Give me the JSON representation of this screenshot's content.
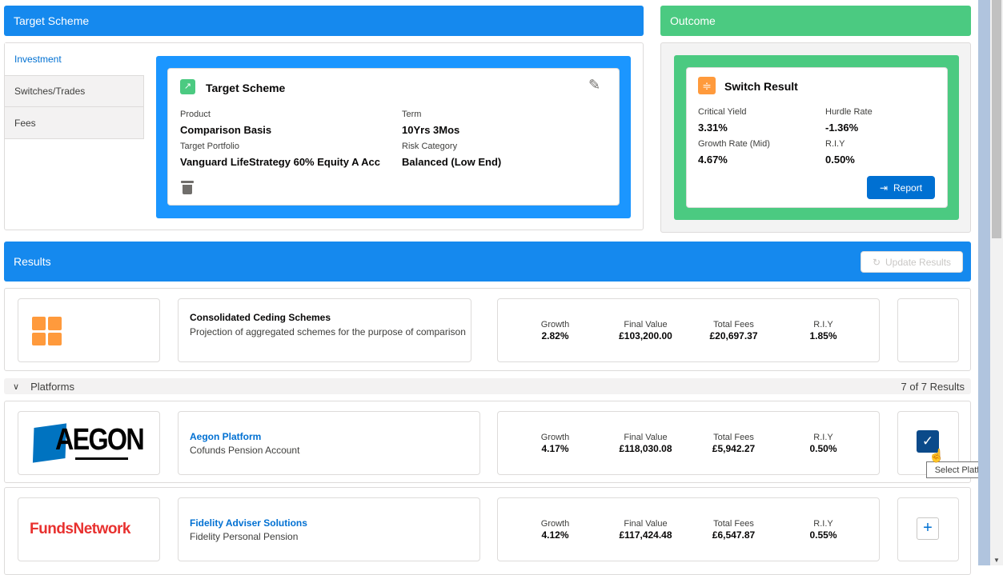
{
  "target_header": "Target Scheme",
  "outcome_header": "Outcome",
  "tabs": [
    "Investment",
    "Switches/Trades",
    "Fees"
  ],
  "target_card": {
    "title": "Target Scheme",
    "fields": [
      {
        "label": "Product",
        "value": "Comparison Basis"
      },
      {
        "label": "Term",
        "value": "10Yrs 3Mos"
      },
      {
        "label": "Target Portfolio",
        "value": "Vanguard LifeStrategy 60% Equity A Acc"
      },
      {
        "label": "Risk Category",
        "value": "Balanced (Low End)"
      }
    ]
  },
  "switch_card": {
    "title": "Switch Result",
    "fields": [
      {
        "label": "Critical Yield",
        "value": "3.31%"
      },
      {
        "label": "Hurdle Rate",
        "value": "-1.36%"
      },
      {
        "label": "Growth Rate (Mid)",
        "value": "4.67%"
      },
      {
        "label": "R.I.Y",
        "value": "0.50%"
      }
    ],
    "report_label": "Report"
  },
  "results": {
    "title": "Results",
    "update_label": "Update Results"
  },
  "stat_labels": [
    "Growth",
    "Final Value",
    "Total Fees",
    "R.I.Y"
  ],
  "ceding": {
    "title": "Consolidated Ceding Schemes",
    "subtitle": "Projection of aggregated schemes for the purpose of comparison",
    "stats": [
      "2.82%",
      "£103,200.00",
      "£20,697.37",
      "1.85%"
    ]
  },
  "platforms": {
    "label": "Platforms",
    "count": "7 of 7 Results"
  },
  "rows": [
    {
      "logo": "AEGON",
      "name": "Aegon Platform",
      "sub": "Cofunds Pension Account",
      "stats": [
        "4.17%",
        "£118,030.08",
        "£5,942.27",
        "0.50%"
      ],
      "selected": true
    },
    {
      "logo": "FundsNetwork",
      "name": "Fidelity Adviser Solutions",
      "sub": "Fidelity Personal Pension",
      "stats": [
        "4.12%",
        "£117,424.48",
        "£6,547.87",
        "0.55%"
      ],
      "selected": false
    }
  ],
  "tooltip": "Select Platform",
  "colors": {
    "blue": "#1589ee",
    "green": "#4bca81",
    "orange": "#ff9a3c",
    "navy": "#0b4a8a"
  }
}
